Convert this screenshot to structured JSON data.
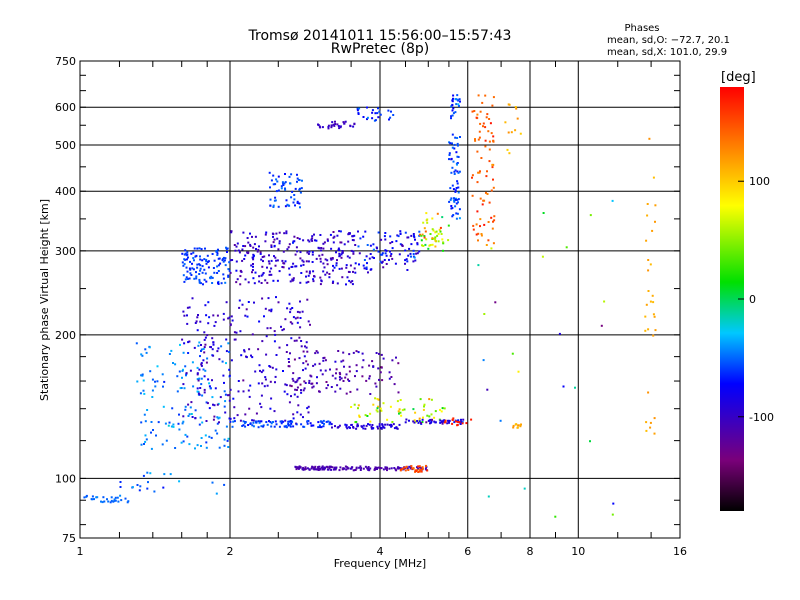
{
  "chart_data": {
    "type": "scatter",
    "title": "Tromsø 20141011 15:56:00–15:57:43",
    "subtitle": "RwPretec (8p)",
    "xlabel": "Frequency [MHz]",
    "ylabel": "Stationary phase Virtual Height [km]",
    "xscale": "log",
    "yscale": "log",
    "xlim": [
      1,
      16
    ],
    "ylim": [
      75,
      750
    ],
    "xticks": [
      1,
      2,
      4,
      6,
      8,
      10,
      16
    ],
    "yticks": [
      75,
      100,
      200,
      300,
      400,
      500,
      600,
      750
    ],
    "grid": true,
    "phases_title": "Phases",
    "phases_O": "mean, sd,O: −72.7, 20.1",
    "phases_X": "mean, sd,X: 101.0, 29.9",
    "colorbar": {
      "label": "[deg]",
      "range": [
        -180,
        180
      ],
      "ticks": [
        100,
        0,
        -100
      ],
      "colormap": "rainbow (black → purple → blue → cyan → green → yellow → red)"
    },
    "series": [
      {
        "clusters": [
          {
            "x": [
              2.7,
              5.0
            ],
            "y": [
              104,
              106
            ],
            "n": 160,
            "phase": -110,
            "spread": 12
          },
          {
            "x": [
              4.4,
              5.0
            ],
            "y": [
              103,
              107
            ],
            "n": 30,
            "phase": 150,
            "spread": 20
          },
          {
            "x": [
              1.02,
              1.25
            ],
            "y": [
              89,
              92
            ],
            "n": 30,
            "phase": -50,
            "spread": 10
          },
          {
            "x": [
              1.2,
              1.95
            ],
            "y": [
              91,
              103
            ],
            "n": 20,
            "phase": -50,
            "spread": 25
          },
          {
            "x": [
              1.3,
              2.0
            ],
            "y": [
              115,
              195
            ],
            "n": 150,
            "phase": -45,
            "spread": 25
          },
          {
            "x": [
              1.6,
              2.9
            ],
            "y": [
              130,
              240
            ],
            "n": 260,
            "phase": -95,
            "spread": 30
          },
          {
            "x": [
              2.0,
              3.2
            ],
            "y": [
              128,
              132
            ],
            "n": 90,
            "phase": -60,
            "spread": 20
          },
          {
            "x": [
              2.6,
              4.4
            ],
            "y": [
              150,
              185
            ],
            "n": 120,
            "phase": -110,
            "spread": 30
          },
          {
            "x": [
              3.2,
              4.4
            ],
            "y": [
              127,
              130
            ],
            "n": 60,
            "phase": -90,
            "spread": 20
          },
          {
            "x": [
              3.5,
              5.4
            ],
            "y": [
              131,
              148
            ],
            "n": 60,
            "phase": 70,
            "spread": 80
          },
          {
            "x": [
              4.5,
              5.9
            ],
            "y": [
              130,
              133
            ],
            "n": 50,
            "phase": -90,
            "spread": 40
          },
          {
            "x": [
              5.4,
              6.2
            ],
            "y": [
              129,
              134
            ],
            "n": 15,
            "phase": 170,
            "spread": 15
          },
          {
            "x": [
              1.6,
              2.0
            ],
            "y": [
              255,
              305
            ],
            "n": 120,
            "phase": -60,
            "spread": 15
          },
          {
            "x": [
              2.0,
              3.6
            ],
            "y": [
              255,
              330
            ],
            "n": 280,
            "phase": -95,
            "spread": 35
          },
          {
            "x": [
              3.6,
              4.8
            ],
            "y": [
              270,
              330
            ],
            "n": 100,
            "phase": -80,
            "spread": 40
          },
          {
            "x": [
              4.8,
              5.5
            ],
            "y": [
              300,
              360
            ],
            "n": 50,
            "phase": 70,
            "spread": 90
          },
          {
            "x": [
              5.5,
              5.8
            ],
            "y": [
              350,
              640
            ],
            "n": 90,
            "phase": -60,
            "spread": 30
          },
          {
            "x": [
              2.4,
              2.8
            ],
            "y": [
              370,
              440
            ],
            "n": 60,
            "phase": -60,
            "spread": 20
          },
          {
            "x": [
              3.0,
              3.6
            ],
            "y": [
              540,
              560
            ],
            "n": 30,
            "phase": -100,
            "spread": 25
          },
          {
            "x": [
              3.6,
              4.4
            ],
            "y": [
              560,
              600
            ],
            "n": 25,
            "phase": -60,
            "spread": 25
          },
          {
            "x": [
              6.1,
              6.8
            ],
            "y": [
              300,
              640
            ],
            "n": 80,
            "phase": 145,
            "spread": 35
          },
          {
            "x": [
              7.0,
              7.7
            ],
            "y": [
              470,
              620
            ],
            "n": 12,
            "phase": 115,
            "spread": 25
          },
          {
            "x": [
              7.4,
              7.8
            ],
            "y": [
              126,
              130
            ],
            "n": 10,
            "phase": 115,
            "spread": 15
          },
          {
            "x": [
              13.6,
              14.3
            ],
            "y": [
              110,
              520
            ],
            "n": 30,
            "phase": 115,
            "spread": 15
          },
          {
            "x": [
              6.2,
              12.0
            ],
            "y": [
              80,
              400
            ],
            "n": 25,
            "phase": -20,
            "spread": 130
          }
        ]
      }
    ]
  }
}
